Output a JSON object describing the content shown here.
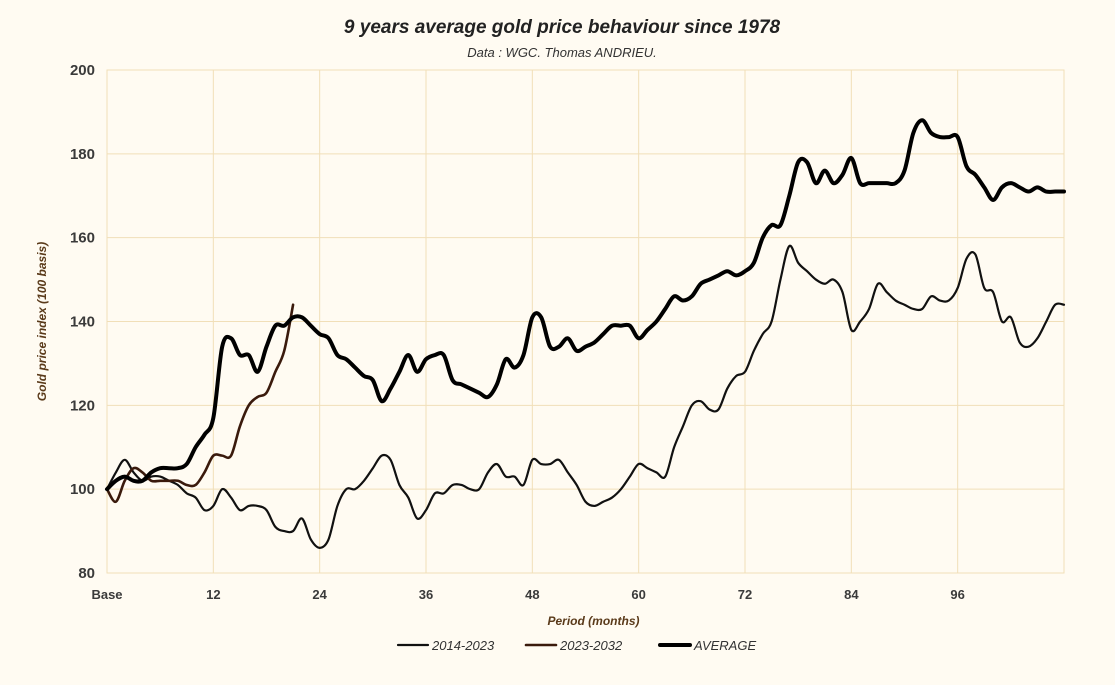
{
  "chart_data": {
    "type": "line",
    "title": "9 years average gold price behaviour since 1978",
    "subtitle": "Data : WGC. Thomas ANDRIEU.",
    "xlabel": "Period (months)",
    "ylabel": "Gold price index (100 basis)",
    "xlim": [
      0,
      108
    ],
    "ylim": [
      80,
      200
    ],
    "yticks": [
      80,
      100,
      120,
      140,
      160,
      180,
      200
    ],
    "xticks": [
      {
        "value": 0,
        "label": "Base"
      },
      {
        "value": 12,
        "label": "12"
      },
      {
        "value": 24,
        "label": "24"
      },
      {
        "value": 36,
        "label": "36"
      },
      {
        "value": 48,
        "label": "48"
      },
      {
        "value": 60,
        "label": "60"
      },
      {
        "value": 72,
        "label": "72"
      },
      {
        "value": 84,
        "label": "84"
      },
      {
        "value": 96,
        "label": "96"
      }
    ],
    "grid": true,
    "legend_position": "bottom",
    "series": [
      {
        "name": "2014-2023",
        "color": "#111111",
        "width": 2.2,
        "x": [
          0,
          1,
          2,
          3,
          4,
          5,
          6,
          7,
          8,
          9,
          10,
          11,
          12,
          13,
          14,
          15,
          16,
          17,
          18,
          19,
          20,
          21,
          22,
          23,
          24,
          25,
          26,
          27,
          28,
          29,
          30,
          31,
          32,
          33,
          34,
          35,
          36,
          37,
          38,
          39,
          40,
          41,
          42,
          43,
          44,
          45,
          46,
          47,
          48,
          49,
          50,
          51,
          52,
          53,
          54,
          55,
          56,
          57,
          58,
          59,
          60,
          61,
          62,
          63,
          64,
          65,
          66,
          67,
          68,
          69,
          70,
          71,
          72,
          73,
          74,
          75,
          76,
          77,
          78,
          79,
          80,
          81,
          82,
          83,
          84,
          85,
          86,
          87,
          88,
          89,
          90,
          91,
          92,
          93,
          94,
          95,
          96,
          97,
          98,
          99,
          100,
          101,
          102,
          103,
          104,
          105,
          106,
          107,
          108
        ],
        "values": [
          100,
          104,
          107,
          104,
          102,
          103,
          103,
          102,
          101,
          99,
          98,
          95,
          96,
          100,
          98,
          95,
          96,
          96,
          95,
          91,
          90,
          90,
          93,
          88,
          86,
          88,
          96,
          100,
          100,
          102,
          105,
          108,
          107,
          101,
          98,
          93,
          95,
          99,
          99,
          101,
          101,
          100,
          100,
          104,
          106,
          103,
          103,
          101,
          107,
          106,
          106,
          107,
          104,
          101,
          97,
          96,
          97,
          98,
          100,
          103,
          106,
          105,
          104,
          103,
          110,
          115,
          120,
          121,
          119,
          119,
          124,
          127,
          128,
          133,
          137,
          140,
          150,
          158,
          154,
          152,
          150,
          149,
          150,
          147,
          138,
          140,
          143,
          149,
          147,
          145,
          144,
          143,
          143,
          146,
          145,
          145,
          148,
          155,
          156,
          148,
          147,
          140,
          141,
          135,
          134,
          136,
          140,
          144,
          144
        ]
      },
      {
        "name": "2023-2032",
        "color": "#3a1a0c",
        "width": 2.6,
        "x": [
          0,
          1,
          2,
          3,
          4,
          5,
          6,
          7,
          8,
          9,
          10,
          11,
          12,
          13,
          14,
          15,
          16,
          17,
          18,
          19,
          20,
          21
        ],
        "values": [
          100,
          97,
          102,
          105,
          104,
          102,
          102,
          102,
          102,
          101,
          101,
          104,
          108,
          108,
          108,
          115,
          120,
          122,
          123,
          128,
          133,
          144
        ]
      },
      {
        "name": "AVERAGE",
        "color": "#000000",
        "width": 4,
        "x": [
          0,
          1,
          2,
          3,
          4,
          5,
          6,
          7,
          8,
          9,
          10,
          11,
          12,
          13,
          14,
          15,
          16,
          17,
          18,
          19,
          20,
          21,
          22,
          23,
          24,
          25,
          26,
          27,
          28,
          29,
          30,
          31,
          32,
          33,
          34,
          35,
          36,
          37,
          38,
          39,
          40,
          41,
          42,
          43,
          44,
          45,
          46,
          47,
          48,
          49,
          50,
          51,
          52,
          53,
          54,
          55,
          56,
          57,
          58,
          59,
          60,
          61,
          62,
          63,
          64,
          65,
          66,
          67,
          68,
          69,
          70,
          71,
          72,
          73,
          74,
          75,
          76,
          77,
          78,
          79,
          80,
          81,
          82,
          83,
          84,
          85,
          86,
          87,
          88,
          89,
          90,
          91,
          92,
          93,
          94,
          95,
          96,
          97,
          98,
          99,
          100,
          101,
          102,
          103,
          104,
          105,
          106,
          107,
          108
        ],
        "values": [
          100,
          102,
          103,
          102,
          102,
          104,
          105,
          105,
          105,
          106,
          110,
          113,
          117,
          134,
          136,
          132,
          132,
          128,
          134,
          139,
          139,
          141,
          141,
          139,
          137,
          136,
          132,
          131,
          129,
          127,
          126,
          121,
          124,
          128,
          132,
          128,
          131,
          132,
          132,
          126,
          125,
          124,
          123,
          122,
          125,
          131,
          129,
          132,
          141,
          141,
          134,
          134,
          136,
          133,
          134,
          135,
          137,
          139,
          139,
          139,
          136,
          138,
          140,
          143,
          146,
          145,
          146,
          149,
          150,
          151,
          152,
          151,
          152,
          154,
          160,
          163,
          163,
          170,
          178,
          178,
          173,
          176,
          173,
          175,
          179,
          173,
          173,
          173,
          173,
          173,
          176,
          185,
          188,
          185,
          184,
          184,
          184,
          177,
          175,
          172,
          169,
          172,
          173,
          172,
          171,
          172,
          171,
          171,
          171
        ]
      }
    ]
  }
}
